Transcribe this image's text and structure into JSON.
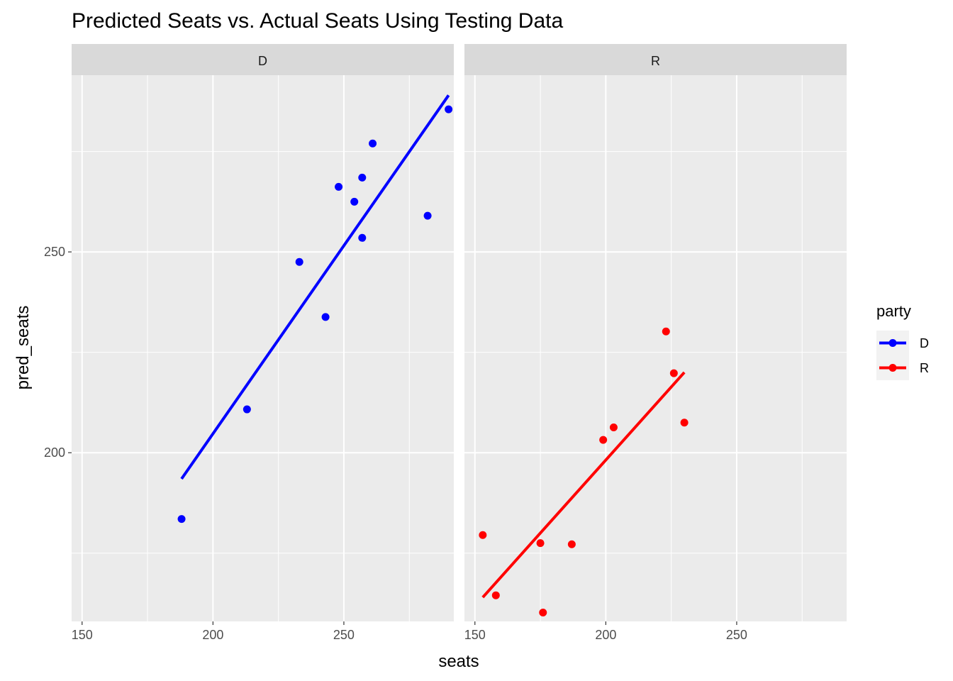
{
  "chart_data": {
    "type": "scatter",
    "title": "Predicted Seats vs. Actual Seats Using Testing Data",
    "xlabel": "seats",
    "ylabel": "pred_seats",
    "xlim": [
      146,
      292
    ],
    "ylim": [
      158,
      294
    ],
    "x_ticks": [
      150,
      200,
      250
    ],
    "y_ticks": [
      200,
      250
    ],
    "grid": true,
    "facets": [
      "D",
      "R"
    ],
    "legend": {
      "title": "party",
      "position": "right",
      "entries": [
        "D",
        "R"
      ]
    },
    "series": [
      {
        "name": "D",
        "facet": "D",
        "color": "#0000ff",
        "points": [
          [
            188,
            183.5
          ],
          [
            213,
            210.8
          ],
          [
            233,
            247.5
          ],
          [
            243,
            233.8
          ],
          [
            248,
            266.2
          ],
          [
            254,
            262.5
          ],
          [
            257,
            268.5
          ],
          [
            257,
            253.5
          ],
          [
            261,
            277
          ],
          [
            282,
            259
          ],
          [
            290,
            285.5
          ]
        ],
        "fit_line": [
          [
            188,
            193.5
          ],
          [
            290,
            289
          ]
        ]
      },
      {
        "name": "R",
        "facet": "R",
        "color": "#ff0000",
        "points": [
          [
            153,
            179.5
          ],
          [
            158,
            164.5
          ],
          [
            175,
            177.5
          ],
          [
            176,
            160.2
          ],
          [
            187,
            177.2
          ],
          [
            199,
            203.2
          ],
          [
            203,
            206.3
          ],
          [
            223,
            230.2
          ],
          [
            226,
            219.8
          ],
          [
            230,
            207.5
          ]
        ],
        "fit_line": [
          [
            153,
            164
          ],
          [
            230,
            220
          ]
        ]
      }
    ]
  }
}
